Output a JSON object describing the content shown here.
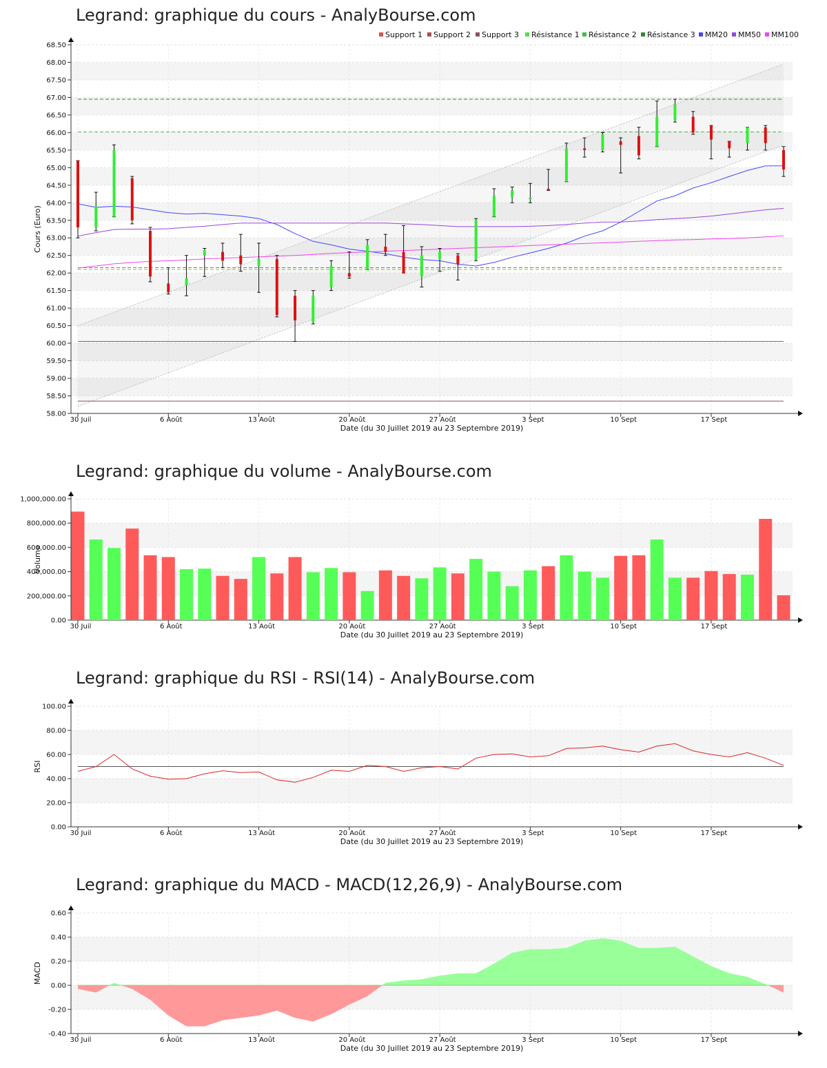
{
  "chart_data": [
    {
      "type": "candlestick",
      "title": "Legrand: graphique du cours - AnalyBourse.com",
      "xlabel": "Date (du 30 Juillet 2019 au 23 Septembre 2019)",
      "ylabel": "Cours (Euro)",
      "ylim": [
        58,
        68.5
      ],
      "ytick_step": 0.5,
      "ytick_decimals": 2,
      "grid": true,
      "legend_position": "top-right",
      "x_tick_labels": [
        {
          "label": "30 Juil",
          "day_index": 0
        },
        {
          "label": "6 Août",
          "day_index": 5
        },
        {
          "label": "13 Août",
          "day_index": 10
        },
        {
          "label": "20 Août",
          "day_index": 15
        },
        {
          "label": "27 Août",
          "day_index": 20
        },
        {
          "label": "3 Sept",
          "day_index": 25
        },
        {
          "label": "10 Sept",
          "day_index": 30
        },
        {
          "label": "17 Sept",
          "day_index": 35
        }
      ],
      "legend": [
        {
          "label": "Support 1",
          "color": "#e05050"
        },
        {
          "label": "Support 2",
          "color": "#b05050"
        },
        {
          "label": "Support 3",
          "color": "#905060"
        },
        {
          "label": "Résistance 1",
          "color": "#55dd55"
        },
        {
          "label": "Résistance 2",
          "color": "#44bb44"
        },
        {
          "label": "Résistance 3",
          "color": "#338833"
        },
        {
          "label": "MM20",
          "color": "#4444ff"
        },
        {
          "label": "MM50",
          "color": "#9944dd"
        },
        {
          "label": "MM100",
          "color": "#ee44ee"
        }
      ],
      "levels": [
        {
          "name": "Support 1",
          "value": 62.15,
          "color": "#e05050",
          "dash": true
        },
        {
          "name": "Support 2",
          "value": 60.05,
          "color": "#b05050",
          "dash": false
        },
        {
          "name": "Support 3",
          "value": 58.35,
          "color": "#905060",
          "dash": false
        },
        {
          "name": "Résistance 1",
          "value": 62.1,
          "color": "#55dd55",
          "dash": true
        },
        {
          "name": "Résistance 2",
          "value": 66.02,
          "color": "#44bb44",
          "dash": true
        },
        {
          "name": "Résistance 3",
          "value": 66.95,
          "color": "#338833",
          "dash": true
        }
      ],
      "channel": {
        "x0": 0,
        "x1": 39,
        "upper": [
          60.5,
          67.95
        ],
        "lower": [
          58.2,
          65.65
        ]
      },
      "candles": [
        {
          "o": 65.2,
          "h": 65.2,
          "l": 63.0,
          "c": 63.3
        },
        {
          "o": 63.3,
          "h": 64.3,
          "l": 63.2,
          "c": 63.9
        },
        {
          "o": 63.6,
          "h": 65.65,
          "l": 63.6,
          "c": 65.5
        },
        {
          "o": 64.7,
          "h": 64.75,
          "l": 63.4,
          "c": 63.5
        },
        {
          "o": 63.2,
          "h": 63.3,
          "l": 61.75,
          "c": 61.9
        },
        {
          "o": 61.7,
          "h": 62.15,
          "l": 61.4,
          "c": 61.45
        },
        {
          "o": 61.65,
          "h": 62.5,
          "l": 61.35,
          "c": 61.85
        },
        {
          "o": 62.5,
          "h": 62.7,
          "l": 61.9,
          "c": 62.65
        },
        {
          "o": 62.6,
          "h": 62.85,
          "l": 62.15,
          "c": 62.35
        },
        {
          "o": 62.5,
          "h": 63.1,
          "l": 62.05,
          "c": 62.25
        },
        {
          "o": 62.2,
          "h": 62.85,
          "l": 61.45,
          "c": 62.4
        },
        {
          "o": 62.4,
          "h": 62.5,
          "l": 60.75,
          "c": 60.8
        },
        {
          "o": 61.35,
          "h": 61.5,
          "l": 60.05,
          "c": 60.65
        },
        {
          "o": 60.6,
          "h": 61.5,
          "l": 60.55,
          "c": 61.35
        },
        {
          "o": 61.6,
          "h": 62.35,
          "l": 61.5,
          "c": 62.2
        },
        {
          "o": 62.0,
          "h": 62.6,
          "l": 61.85,
          "c": 61.9
        },
        {
          "o": 62.1,
          "h": 62.95,
          "l": 62.1,
          "c": 62.8
        },
        {
          "o": 62.75,
          "h": 63.1,
          "l": 62.5,
          "c": 62.6
        },
        {
          "o": 62.6,
          "h": 63.35,
          "l": 62.0,
          "c": 62.0
        },
        {
          "o": 61.9,
          "h": 62.75,
          "l": 61.6,
          "c": 62.5
        },
        {
          "o": 62.4,
          "h": 62.7,
          "l": 62.05,
          "c": 62.6
        },
        {
          "o": 62.5,
          "h": 62.55,
          "l": 61.8,
          "c": 62.25
        },
        {
          "o": 62.4,
          "h": 63.55,
          "l": 62.35,
          "c": 63.5
        },
        {
          "o": 63.6,
          "h": 64.4,
          "l": 63.6,
          "c": 64.2
        },
        {
          "o": 64.15,
          "h": 64.45,
          "l": 64.0,
          "c": 64.35
        },
        {
          "o": 64.1,
          "h": 64.55,
          "l": 64.0,
          "c": 64.15
        },
        {
          "o": 64.4,
          "h": 64.95,
          "l": 64.35,
          "c": 64.35
        },
        {
          "o": 64.6,
          "h": 65.7,
          "l": 64.6,
          "c": 65.55
        },
        {
          "o": 65.55,
          "h": 65.85,
          "l": 65.3,
          "c": 65.5
        },
        {
          "o": 65.5,
          "h": 66.0,
          "l": 65.45,
          "c": 65.95
        },
        {
          "o": 65.75,
          "h": 65.85,
          "l": 64.85,
          "c": 65.65
        },
        {
          "o": 65.9,
          "h": 66.15,
          "l": 65.25,
          "c": 65.35
        },
        {
          "o": 65.6,
          "h": 66.9,
          "l": 65.6,
          "c": 66.45
        },
        {
          "o": 66.35,
          "h": 66.95,
          "l": 66.3,
          "c": 66.8
        },
        {
          "o": 66.45,
          "h": 66.6,
          "l": 65.95,
          "c": 66.0
        },
        {
          "o": 66.2,
          "h": 66.2,
          "l": 65.25,
          "c": 65.8
        },
        {
          "o": 65.75,
          "h": 65.75,
          "l": 65.3,
          "c": 65.55
        },
        {
          "o": 65.7,
          "h": 66.15,
          "l": 65.5,
          "c": 66.15
        },
        {
          "o": 66.15,
          "h": 66.2,
          "l": 65.5,
          "c": 65.7
        },
        {
          "o": 65.5,
          "h": 65.6,
          "l": 64.75,
          "c": 64.95
        }
      ],
      "series": [
        {
          "name": "MM20",
          "color": "#4444ff",
          "values": [
            63.97,
            63.87,
            63.9,
            63.88,
            63.8,
            63.72,
            63.68,
            63.7,
            63.66,
            63.62,
            63.55,
            63.38,
            63.12,
            62.9,
            62.8,
            62.68,
            62.62,
            62.55,
            62.45,
            62.38,
            62.35,
            62.25,
            62.2,
            62.3,
            62.45,
            62.57,
            62.7,
            62.85,
            63.05,
            63.2,
            63.45,
            63.75,
            64.05,
            64.2,
            64.42,
            64.57,
            64.75,
            64.92,
            65.05,
            65.05
          ]
        },
        {
          "name": "MM50",
          "color": "#9944dd",
          "values": [
            63.05,
            63.15,
            63.24,
            63.25,
            63.25,
            63.26,
            63.3,
            63.33,
            63.38,
            63.42,
            63.42,
            63.42,
            63.42,
            63.42,
            63.42,
            63.42,
            63.42,
            63.42,
            63.4,
            63.38,
            63.35,
            63.32,
            63.32,
            63.32,
            63.32,
            63.33,
            63.35,
            63.38,
            63.42,
            63.45,
            63.45,
            63.48,
            63.52,
            63.55,
            63.58,
            63.62,
            63.68,
            63.74,
            63.8,
            63.84
          ]
        },
        {
          "name": "MM100",
          "color": "#ee44ee",
          "values": [
            62.14,
            62.2,
            62.26,
            62.3,
            62.33,
            62.35,
            62.37,
            62.4,
            62.42,
            62.44,
            62.46,
            62.48,
            62.5,
            62.53,
            62.56,
            62.58,
            62.6,
            62.62,
            62.64,
            62.66,
            62.68,
            62.7,
            62.72,
            62.74,
            62.76,
            62.78,
            62.8,
            62.82,
            62.84,
            62.86,
            62.88,
            62.9,
            62.92,
            62.94,
            62.95,
            62.97,
            62.98,
            63.0,
            63.03,
            63.06
          ]
        }
      ]
    },
    {
      "type": "bar",
      "title": "Legrand: graphique du volume - AnalyBourse.com",
      "xlabel": "Date (du 30 Juillet 2019 au 23 Septembre 2019)",
      "ylabel": "Volume",
      "ylim": [
        0,
        1000000
      ],
      "ytick_step": 200000,
      "ytick_format": "thousands",
      "grid": true,
      "colors": {
        "up": "#55ff55",
        "down": "#ff5a5a"
      },
      "x_tick_labels": [
        {
          "label": "30 Juil",
          "day_index": 0
        },
        {
          "label": "6 Août",
          "day_index": 5
        },
        {
          "label": "13 Août",
          "day_index": 10
        },
        {
          "label": "20 Août",
          "day_index": 15
        },
        {
          "label": "27 Août",
          "day_index": 20
        },
        {
          "label": "3 Sept",
          "day_index": 25
        },
        {
          "label": "10 Sept",
          "day_index": 30
        },
        {
          "label": "17 Sept",
          "day_index": 35
        }
      ],
      "values": [
        895000,
        665000,
        595000,
        755000,
        535000,
        520000,
        420000,
        425000,
        365000,
        340000,
        520000,
        385000,
        520000,
        395000,
        430000,
        395000,
        240000,
        410000,
        365000,
        345000,
        435000,
        385000,
        505000,
        400000,
        280000,
        410000,
        445000,
        535000,
        400000,
        350000,
        530000,
        535000,
        665000,
        350000,
        350000,
        405000,
        380000,
        375000,
        835000,
        205000
      ],
      "direction": [
        "down",
        "up",
        "up",
        "down",
        "down",
        "down",
        "up",
        "up",
        "down",
        "down",
        "up",
        "down",
        "down",
        "up",
        "up",
        "down",
        "up",
        "down",
        "down",
        "up",
        "up",
        "down",
        "up",
        "up",
        "up",
        "up",
        "down",
        "up",
        "up",
        "up",
        "down",
        "down",
        "up",
        "up",
        "down",
        "down",
        "down",
        "up",
        "down",
        "down"
      ]
    },
    {
      "type": "line",
      "title": "Legrand: graphique du RSI - RSI(14) - AnalyBourse.com",
      "xlabel": "Date (du 30 Juillet 2019 au 23 Septembre 2019)",
      "ylabel": "RSI",
      "ylim": [
        0,
        100
      ],
      "ytick_step": 20,
      "ytick_decimals": 2,
      "grid": true,
      "reference_line": 50,
      "x_tick_labels": [
        {
          "label": "30 Juil",
          "day_index": 0
        },
        {
          "label": "6 Août",
          "day_index": 5
        },
        {
          "label": "13 Août",
          "day_index": 10
        },
        {
          "label": "20 Août",
          "day_index": 15
        },
        {
          "label": "27 Août",
          "day_index": 20
        },
        {
          "label": "3 Sept",
          "day_index": 25
        },
        {
          "label": "10 Sept",
          "day_index": 30
        },
        {
          "label": "17 Sept",
          "day_index": 35
        }
      ],
      "series": [
        {
          "color": "#dd2222",
          "values": [
            46,
            50,
            60,
            48,
            42,
            39.5,
            40,
            44,
            46.5,
            45,
            45.5,
            39,
            37,
            41,
            47,
            46,
            51,
            50,
            46,
            49,
            50,
            48,
            57,
            60,
            60.5,
            58,
            59,
            65,
            65.5,
            67,
            64,
            62,
            67,
            69,
            63,
            60,
            58,
            61.5,
            57,
            51
          ]
        }
      ]
    },
    {
      "type": "area",
      "title": "Legrand: graphique du MACD - MACD(12,26,9) - AnalyBourse.com",
      "xlabel": "Date (du 30 Juillet 2019 au 23 Septembre 2019)",
      "ylabel": "MACD",
      "ylim": [
        -0.4,
        0.6
      ],
      "ytick_step": 0.2,
      "ytick_decimals": 2,
      "grid": true,
      "colors": {
        "positive": "#99ff99",
        "negative": "#ff9999"
      },
      "x_tick_labels": [
        {
          "label": "30 Juil",
          "day_index": 0
        },
        {
          "label": "6 Août",
          "day_index": 5
        },
        {
          "label": "13 Août",
          "day_index": 10
        },
        {
          "label": "20 Août",
          "day_index": 15
        },
        {
          "label": "27 Août",
          "day_index": 20
        },
        {
          "label": "3 Sept",
          "day_index": 25
        },
        {
          "label": "10 Sept",
          "day_index": 30
        },
        {
          "label": "17 Sept",
          "day_index": 35
        }
      ],
      "values": [
        -0.03,
        -0.06,
        0.02,
        -0.03,
        -0.12,
        -0.25,
        -0.34,
        -0.34,
        -0.29,
        -0.27,
        -0.25,
        -0.21,
        -0.27,
        -0.3,
        -0.24,
        -0.16,
        -0.09,
        0.02,
        0.04,
        0.05,
        0.08,
        0.1,
        0.1,
        0.18,
        0.27,
        0.3,
        0.3,
        0.31,
        0.37,
        0.39,
        0.37,
        0.31,
        0.31,
        0.32,
        0.24,
        0.16,
        0.1,
        0.07,
        0.01,
        -0.06
      ]
    }
  ]
}
